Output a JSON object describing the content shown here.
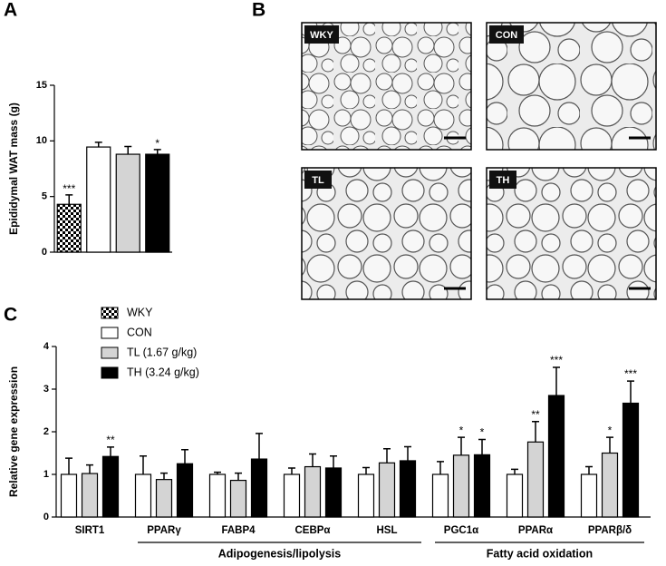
{
  "chart_data": [
    {
      "type": "bar",
      "panel": "A",
      "ylabel": "Epididymal WAT mass (g)",
      "categories": [
        null,
        null,
        null,
        null
      ],
      "values": [
        4.3,
        9.45,
        8.8,
        8.8
      ],
      "errors": [
        0.85,
        0.42,
        0.7,
        0.42
      ],
      "colors": [
        "checker",
        "#ffffff",
        "#d4d4d4",
        "#000000"
      ],
      "significance": [
        "***",
        null,
        null,
        "*"
      ],
      "ylim": [
        0,
        15
      ],
      "yticks": [
        0,
        5,
        10,
        15
      ],
      "grid": false
    },
    {
      "type": "grouped-bar",
      "panel": "C",
      "ylabel": "Relative gene expression",
      "categories": [
        "SIRT1",
        "PPARγ",
        "FABP4",
        "CEBPα",
        "HSL",
        "PGC1α",
        "PPARα",
        "PPARβ/δ"
      ],
      "series": [
        {
          "name": "WKY",
          "color": "checker",
          "values": [
            null,
            null,
            null,
            null,
            null,
            null,
            null,
            null
          ],
          "errors": [
            null,
            null,
            null,
            null,
            null,
            null,
            null,
            null
          ],
          "significance": [
            null,
            null,
            null,
            null,
            null,
            null,
            null,
            null
          ]
        },
        {
          "name": "CON",
          "color": "#ffffff",
          "values": [
            1.0,
            1.0,
            1.0,
            1.0,
            1.0,
            1.0,
            1.0,
            1.0
          ],
          "errors": [
            0.38,
            0.43,
            0.05,
            0.15,
            0.16,
            0.3,
            0.12,
            0.18
          ],
          "significance": [
            null,
            null,
            null,
            null,
            null,
            null,
            null,
            null
          ]
        },
        {
          "name": "TL (1.67 g/kg)",
          "color": "#d4d4d4",
          "values": [
            1.02,
            0.88,
            0.86,
            1.18,
            1.27,
            1.45,
            1.76,
            1.5
          ],
          "errors": [
            0.2,
            0.15,
            0.17,
            0.3,
            0.33,
            0.42,
            0.48,
            0.37
          ],
          "significance": [
            null,
            null,
            null,
            null,
            null,
            "*",
            "**",
            "*"
          ]
        },
        {
          "name": "TH (3.24 g/kg)",
          "color": "#000000",
          "values": [
            1.42,
            1.25,
            1.36,
            1.15,
            1.32,
            1.46,
            2.85,
            2.67
          ],
          "errors": [
            0.22,
            0.33,
            0.6,
            0.28,
            0.33,
            0.36,
            0.66,
            0.52
          ],
          "significance": [
            "**",
            null,
            null,
            null,
            null,
            "*",
            "***",
            "***"
          ]
        }
      ],
      "groups": [
        {
          "label": "Adipogenesis/lipolysis",
          "categories": [
            "PPARγ",
            "FABP4",
            "CEBPα",
            "HSL"
          ]
        },
        {
          "label": "Fatty acid oxidation",
          "categories": [
            "PGC1α",
            "PPARα",
            "PPARβ/δ"
          ]
        }
      ],
      "ylim": [
        0,
        4
      ],
      "yticks": [
        0,
        1,
        2,
        3,
        4
      ],
      "grid": false
    }
  ],
  "histology": {
    "panel": "B",
    "labels": [
      "WKY",
      "CON",
      "TL",
      "TH"
    ]
  }
}
